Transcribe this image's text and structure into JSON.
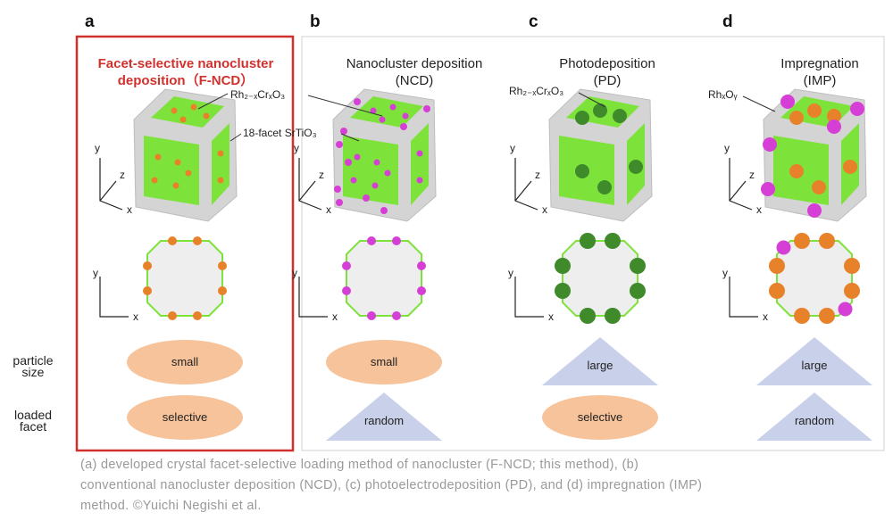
{
  "panels": [
    {
      "letter": "a",
      "title_line1": "Facet-selective nanocluster",
      "title_line2": "deposition（F-NCD）",
      "particle_size": "small",
      "loaded_facet": "selective",
      "size_shape": "ellipse",
      "facet_shape": "ellipse",
      "particle_color": "#e8822a"
    },
    {
      "letter": "b",
      "title_line1": "Nanocluster deposition",
      "title_line2": "(NCD)",
      "particle_size": "small",
      "loaded_facet": "random",
      "size_shape": "ellipse",
      "facet_shape": "triangle",
      "particle_color": "#d63fd6"
    },
    {
      "letter": "c",
      "title_line1": "Photodeposition",
      "title_line2": "(PD)",
      "particle_size": "large",
      "loaded_facet": "selective",
      "size_shape": "triangle",
      "facet_shape": "ellipse",
      "particle_color": "#3f8a2a"
    },
    {
      "letter": "d",
      "title_line1": "Impregnation",
      "title_line2": "(IMP)",
      "particle_size": "large",
      "loaded_facet": "random",
      "size_shape": "triangle",
      "facet_shape": "triangle",
      "particle_color": "#e8822a"
    }
  ],
  "annotations": {
    "rh_cr_ncd": "Rh₂₋ₓCrₓO₃",
    "srtio3": "18-facet SrTiO₃",
    "rh_cr_pd": "Rh₂₋ₓCrₓO₃",
    "rhoy": "RhₓOᵧ"
  },
  "axes": {
    "x": "x",
    "y": "y",
    "z": "z"
  },
  "row_labels": {
    "particle_size": "particle size",
    "loaded_facet": "loaded facet"
  },
  "caption": {
    "line1": "(a) developed crystal facet-selective loading method of nanocluster (F-NCD; this method), (b)",
    "line2": "conventional nanocluster deposition (NCD), (c) photoelectrodeposition (PD), and (d) impregnation (IMP)",
    "line3": "method. ©Yuichi Negishi et al."
  },
  "colors": {
    "highlight": "#d0312d",
    "facet_green": "#7de33a",
    "crystal_gray": "#d4d4d4",
    "ellipse": "#f7c39a",
    "triangle": "#c9d0ea"
  }
}
